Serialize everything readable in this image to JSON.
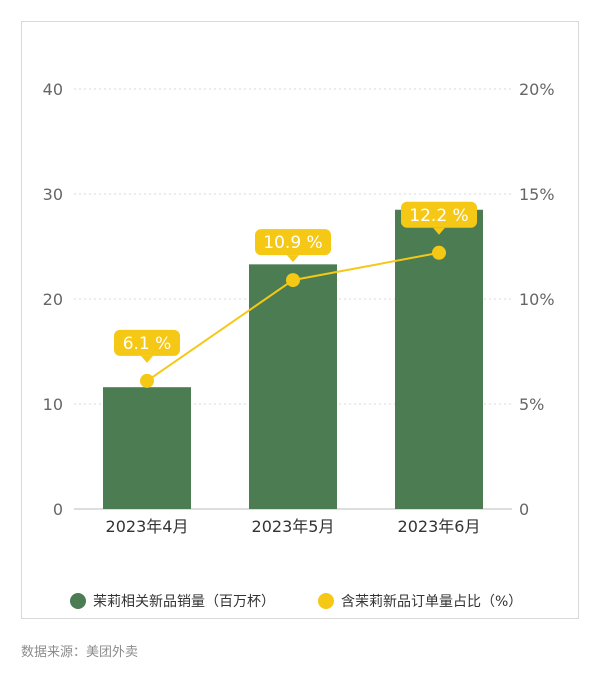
{
  "chart_data": {
    "type": "bar+line",
    "categories": [
      "2023年4月",
      "2023年5月",
      "2023年6月"
    ],
    "series": [
      {
        "name": "茉莉相关新品销量（百万杯）",
        "type": "bar",
        "axis": "left",
        "values": [
          11.6,
          23.3,
          28.5
        ],
        "color": "#4b7c52"
      },
      {
        "name": "含茉莉新品订单量占比（%）",
        "type": "line",
        "axis": "right",
        "values": [
          6.1,
          10.9,
          12.2
        ],
        "labels": [
          "6.1 %",
          "10.9 %",
          "12.2 %"
        ],
        "color": "#f5c816"
      }
    ],
    "y_left": {
      "ylim": [
        0,
        40
      ],
      "ticks": [
        "0",
        "10",
        "20",
        "30",
        "40"
      ]
    },
    "y_right": {
      "ylim": [
        0,
        20
      ],
      "ticks": [
        "0",
        "5%",
        "10%",
        "15%",
        "20%"
      ]
    },
    "grid": true,
    "legend": "bottom"
  },
  "source": "数据来源：美团外卖"
}
